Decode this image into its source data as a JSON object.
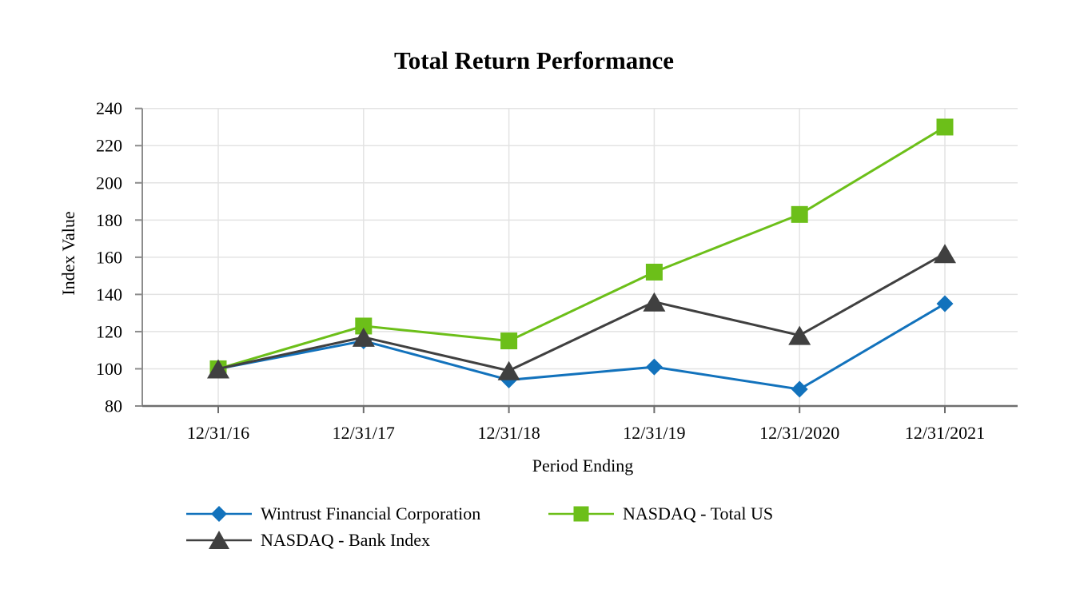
{
  "chart_data": {
    "type": "line",
    "title": "Total Return Performance",
    "xlabel": "Period Ending",
    "ylabel": "Index Value",
    "categories": [
      "12/31/16",
      "12/31/17",
      "12/31/18",
      "12/31/19",
      "12/31/2020",
      "12/31/2021"
    ],
    "y_ticks": [
      80,
      100,
      120,
      140,
      160,
      180,
      200,
      220,
      240
    ],
    "ylim": [
      80,
      240
    ],
    "grid": true,
    "legend_position": "bottom",
    "series": [
      {
        "name": "Wintrust Financial Corporation",
        "marker": "diamond",
        "color": "#1272BC",
        "values": [
          100,
          115,
          94,
          101,
          89,
          135
        ]
      },
      {
        "name": "NASDAQ - Total US",
        "marker": "square",
        "color": "#6CBF19",
        "values": [
          100,
          123,
          115,
          152,
          183,
          230
        ]
      },
      {
        "name": "NASDAQ - Bank Index",
        "marker": "triangle",
        "color": "#404040",
        "values": [
          100,
          117,
          99,
          136,
          118,
          162
        ]
      }
    ],
    "style": {
      "grid_color": "#e3e3e3",
      "axis_color": "#8c8c8c",
      "bottom_axis_color": "#6e6e6e",
      "text_color": "#000000",
      "background": "#ffffff"
    }
  }
}
